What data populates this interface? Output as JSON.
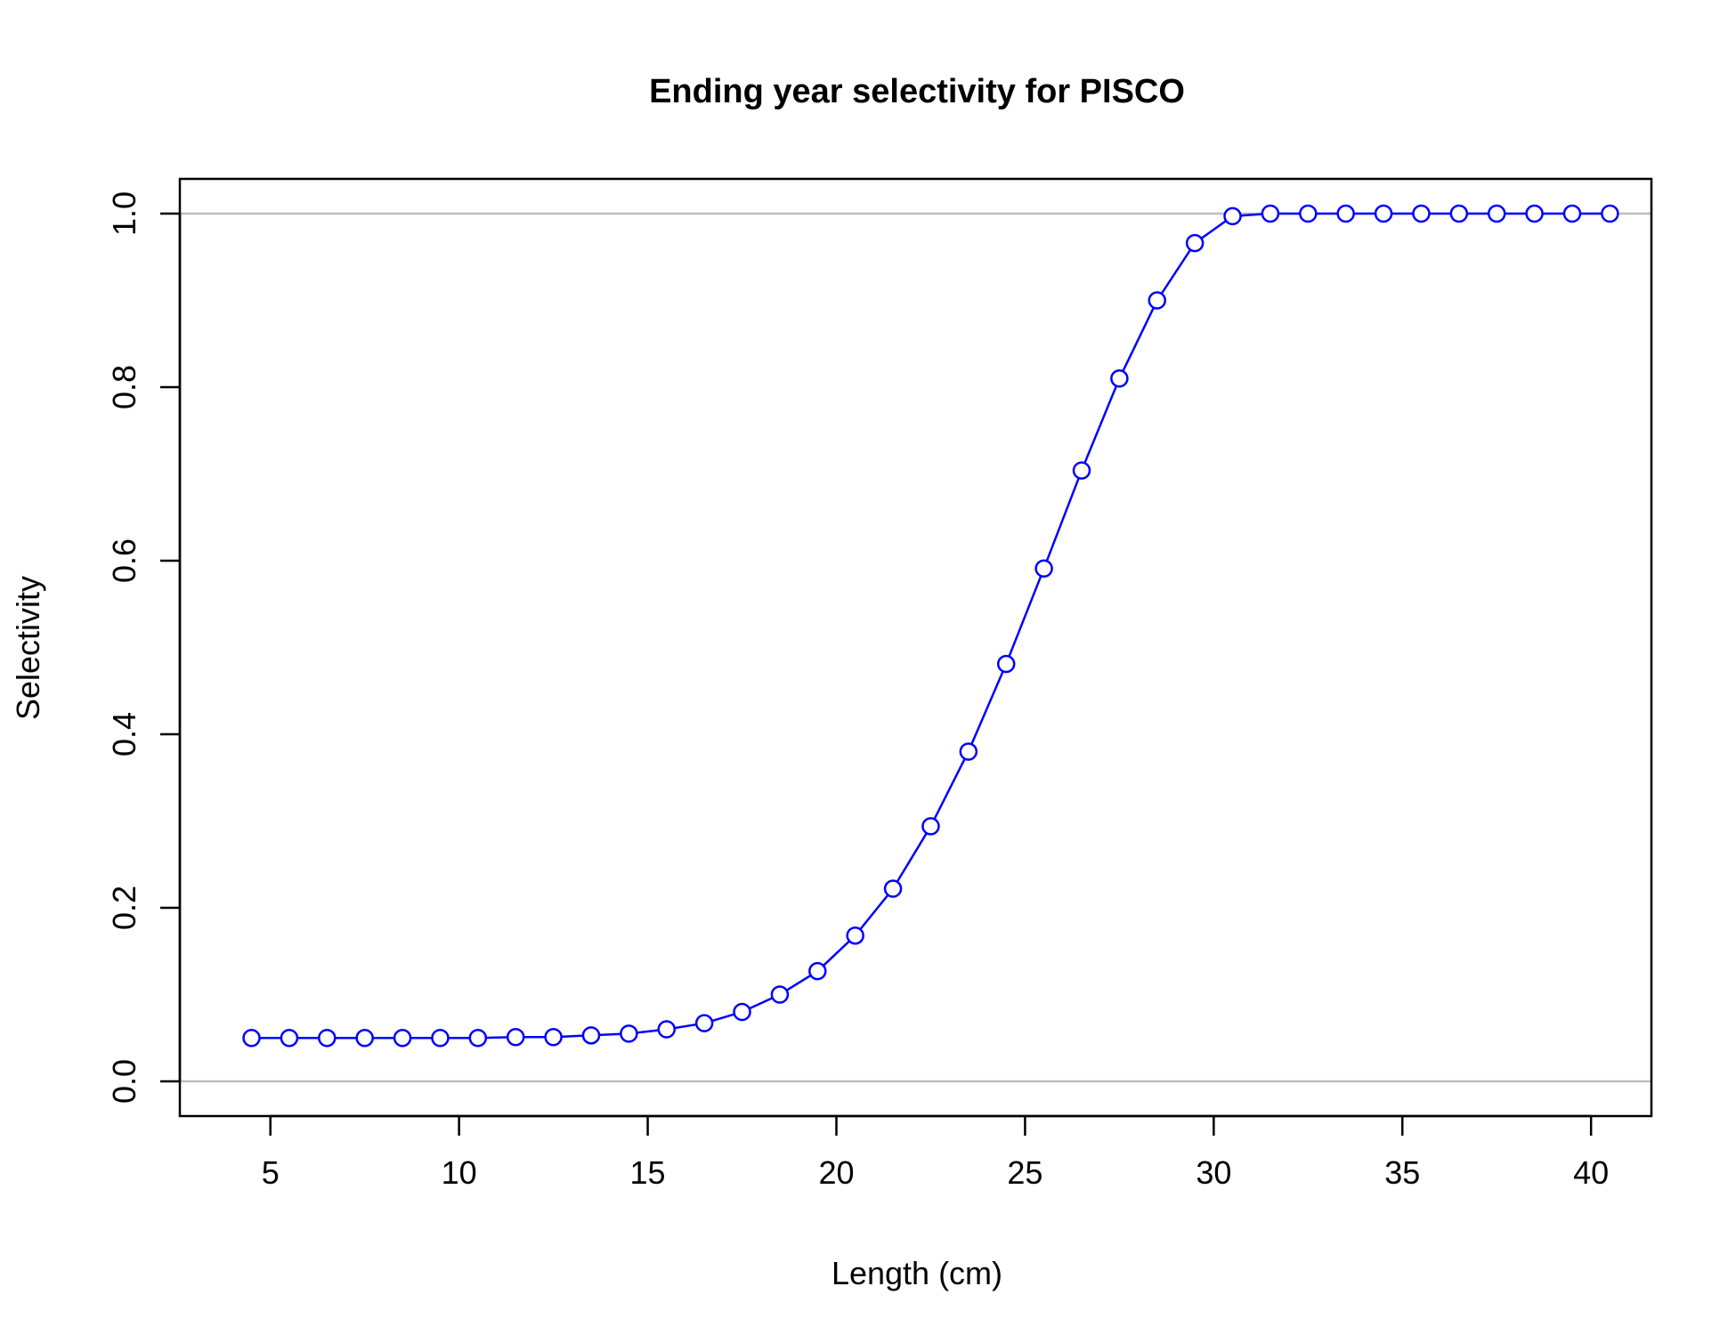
{
  "chart_data": {
    "type": "line",
    "title": "Ending year selectivity for PISCO",
    "xlabel": "Length (cm)",
    "ylabel": "Selectivity",
    "xlim": [
      2.6,
      41.6
    ],
    "ylim": [
      -0.04,
      1.04
    ],
    "x_ticks": [
      5,
      10,
      15,
      20,
      25,
      30,
      35,
      40
    ],
    "x_tick_labels": [
      "5",
      "10",
      "15",
      "20",
      "25",
      "30",
      "35",
      "40"
    ],
    "y_ticks": [
      0.0,
      0.2,
      0.4,
      0.6,
      0.8,
      1.0
    ],
    "y_tick_labels": [
      "0.0",
      "0.2",
      "0.4",
      "0.6",
      "0.8",
      "1.0"
    ],
    "reference_lines": [
      0,
      1
    ],
    "grid": false,
    "legend": "none",
    "colors": {
      "series": "#0000ff",
      "reference": "#bebebe",
      "axis": "#000000"
    },
    "series": [
      {
        "marker": "open-circle",
        "x": [
          4.5,
          5.5,
          6.5,
          7.5,
          8.5,
          9.5,
          10.5,
          11.5,
          12.5,
          13.5,
          14.5,
          15.5,
          16.5,
          17.5,
          18.5,
          19.5,
          20.5,
          21.5,
          22.5,
          23.5,
          24.5,
          25.5,
          26.5,
          27.5,
          28.5,
          29.5,
          30.5,
          31.5,
          32.5,
          33.5,
          34.5,
          35.5,
          36.5,
          37.5,
          38.5,
          39.5,
          40.5
        ],
        "y": [
          0.05,
          0.05,
          0.05,
          0.05,
          0.05,
          0.05,
          0.05,
          0.051,
          0.051,
          0.053,
          0.055,
          0.06,
          0.067,
          0.08,
          0.1,
          0.127,
          0.168,
          0.222,
          0.294,
          0.38,
          0.481,
          0.591,
          0.704,
          0.81,
          0.9,
          0.966,
          0.997,
          1.0,
          1.0,
          1.0,
          1.0,
          1.0,
          1.0,
          1.0,
          1.0,
          1.0,
          1.0
        ]
      }
    ]
  }
}
